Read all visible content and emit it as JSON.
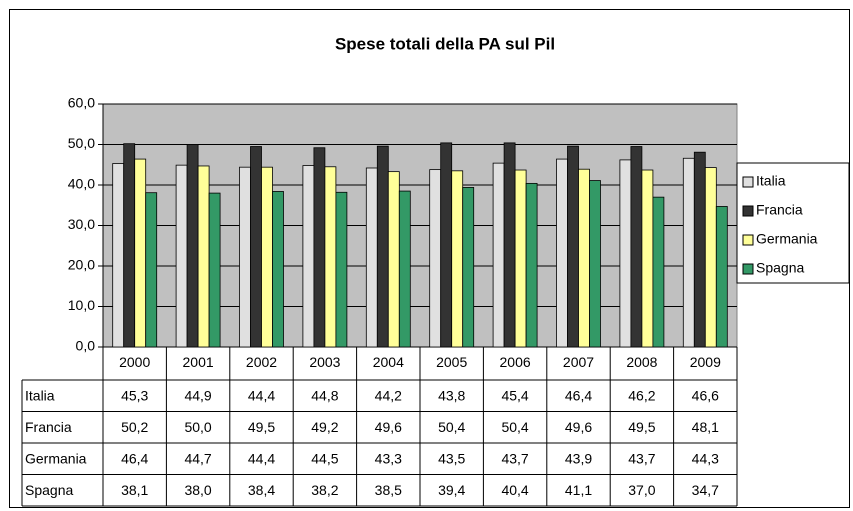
{
  "chart_data": {
    "type": "bar",
    "title": "Spese totali della PA sul Pil",
    "categories": [
      "2000",
      "2001",
      "2002",
      "2003",
      "2004",
      "2005",
      "2006",
      "2007",
      "2008",
      "2009"
    ],
    "series": [
      {
        "name": "Italia",
        "color": "#e0e0e0",
        "values": [
          45.3,
          44.9,
          44.4,
          44.8,
          44.2,
          43.8,
          45.4,
          46.4,
          46.2,
          46.6
        ],
        "value_labels": [
          "45,3",
          "44,9",
          "44,4",
          "44,8",
          "44,2",
          "43,8",
          "45,4",
          "46,4",
          "46,2",
          "46,6"
        ]
      },
      {
        "name": "Francia",
        "color": "#333333",
        "values": [
          50.2,
          50.0,
          49.5,
          49.2,
          49.6,
          50.4,
          50.4,
          49.6,
          49.5,
          48.1
        ],
        "value_labels": [
          "50,2",
          "50,0",
          "49,5",
          "49,2",
          "49,6",
          "50,4",
          "50,4",
          "49,6",
          "49,5",
          "48,1"
        ]
      },
      {
        "name": "Germania",
        "color": "#ffff99",
        "values": [
          46.4,
          44.7,
          44.4,
          44.5,
          43.3,
          43.5,
          43.7,
          43.9,
          43.7,
          44.3
        ],
        "value_labels": [
          "46,4",
          "44,7",
          "44,4",
          "44,5",
          "43,3",
          "43,5",
          "43,7",
          "43,9",
          "43,7",
          "44,3"
        ]
      },
      {
        "name": "Spagna",
        "color": "#339966",
        "values": [
          38.1,
          38.0,
          38.4,
          38.2,
          38.5,
          39.4,
          40.4,
          41.1,
          37.0,
          34.7
        ],
        "value_labels": [
          "38,1",
          "38,0",
          "38,4",
          "38,2",
          "38,5",
          "39,4",
          "40,4",
          "41,1",
          "37,0",
          "34,7"
        ]
      }
    ],
    "ylim": [
      0,
      60
    ],
    "yticks": [
      {
        "value": 0,
        "label": "0,0"
      },
      {
        "value": 10,
        "label": "10,0"
      },
      {
        "value": 20,
        "label": "20,0"
      },
      {
        "value": 30,
        "label": "30,0"
      },
      {
        "value": 40,
        "label": "40,0"
      },
      {
        "value": 50,
        "label": "50,0"
      },
      {
        "value": 60,
        "label": "60,0"
      }
    ],
    "grid": true,
    "legend": "right",
    "plot_background": "#c0c0c0"
  }
}
